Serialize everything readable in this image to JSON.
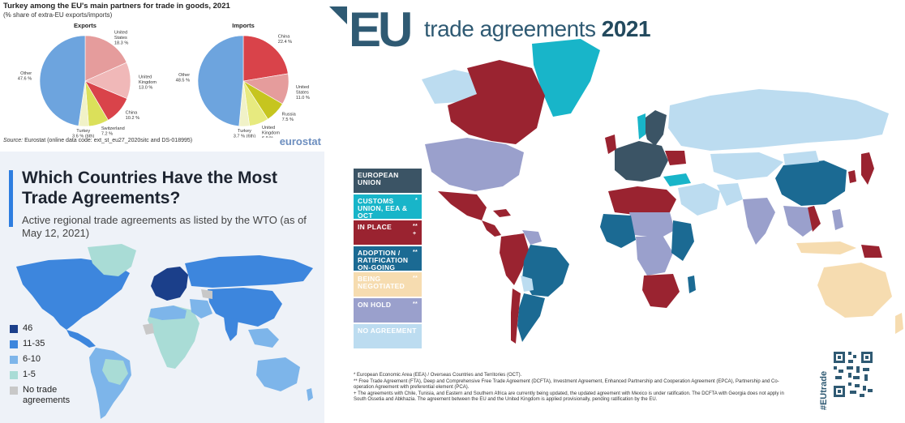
{
  "eurostat": {
    "title": "Turkey among the EU's main partners for trade in goods, 2021",
    "subtitle": "(% share of extra-EU exports/imports)",
    "source_label": "Source:",
    "source_text": "Eurostat (online data code: ext_st_eu27_2020sitc and DS-018995)",
    "brand": "eurostat",
    "exports": {
      "label": "Exports",
      "slices": [
        {
          "name": "United States",
          "value": 18.3,
          "label": "18.3 %",
          "color": "#e59c9c"
        },
        {
          "name": "United Kingdom",
          "value": 13.0,
          "label": "13.0 %",
          "color": "#f0b8b8"
        },
        {
          "name": "China",
          "value": 10.2,
          "label": "10.2 %",
          "color": "#d9434a"
        },
        {
          "name": "Switzerland",
          "value": 7.2,
          "label": "7.2 %",
          "color": "#dbe05a"
        },
        {
          "name": "Turkey",
          "value": 3.6,
          "label": "3.6 % (6th)",
          "color": "#f1f2c8"
        },
        {
          "name": "Other",
          "value": 47.6,
          "label": "47.6 %",
          "color": "#6da4de"
        }
      ]
    },
    "imports": {
      "label": "Imports",
      "slices": [
        {
          "name": "China",
          "value": 22.4,
          "label": "22.4 %",
          "color": "#d9434a"
        },
        {
          "name": "United States",
          "value": 11.0,
          "label": "11.0 %",
          "color": "#e59c9c"
        },
        {
          "name": "Russia",
          "value": 7.5,
          "label": "7.5 %",
          "color": "#c6c51f"
        },
        {
          "name": "United Kingdom",
          "value": 6.9,
          "label": "6.9 %",
          "color": "#e7ea7f"
        },
        {
          "name": "Turkey",
          "value": 3.7,
          "label": "3.7 % (6th)",
          "color": "#f1f2c8"
        },
        {
          "name": "Other",
          "value": 48.5,
          "label": "48.5 %",
          "color": "#6da4de"
        }
      ]
    }
  },
  "wto": {
    "headline": "Which Countries Have the Most Trade Agreements?",
    "subheading": "Active regional trade agreements as listed by the WTO (as of May 12, 2021)",
    "legend": [
      {
        "label": "46",
        "color": "#1b3f8a"
      },
      {
        "label": "11-35",
        "color": "#3d86dd"
      },
      {
        "label": "6-10",
        "color": "#7db5ea"
      },
      {
        "label": "1-5",
        "color": "#a9dcd6"
      },
      {
        "label": "No trade agreements",
        "color": "#c8c8c8"
      }
    ]
  },
  "eu_map": {
    "title_main": "trade agreements",
    "title_year": "2021",
    "legend": [
      {
        "label": "EUROPEAN UNION",
        "stars": "",
        "color": "#3b5465"
      },
      {
        "label": "CUSTOMS UNION, EEA & OCT",
        "stars": "*",
        "color": "#18b5c9"
      },
      {
        "label": "IN PLACE",
        "stars": "**\n+",
        "color": "#9a2330"
      },
      {
        "label": "ADOPTION / RATIFICATION ON-GOING",
        "stars": "**",
        "color": "#1b6a93"
      },
      {
        "label": "BEING NEGOTIATED",
        "stars": "**",
        "color": "#f6dcb0"
      },
      {
        "label": "ON HOLD",
        "stars": "**",
        "color": "#9aa0cc"
      },
      {
        "label": "NO AGREEMENT",
        "stars": "",
        "color": "#bcdcf0"
      }
    ],
    "footnotes": [
      "* European Economic Area (EEA) / Overseas Countries and Territories (OCT).",
      "** Free Trade Agreement (FTA), Deep and Comprehensive Free Trade Agreement (DCFTA), Investment Agreement, Enhanced Partnership and Cooperation Agreement (EPCA), Partnership and Co-operation Agreement with preferential element (PCA).",
      "+ The agreements with Chile, Tunisia, and Eastern and Southern Africa are currently being updated, the updated agreement with Mexico is under ratification. The DCFTA with Georgia does not apply in South Ossetia and Abkhazia. The agreement between the EU and the United Kingdom is applied provisionally, pending ratification by the EU."
    ],
    "hashtag": "#EUtrade"
  }
}
